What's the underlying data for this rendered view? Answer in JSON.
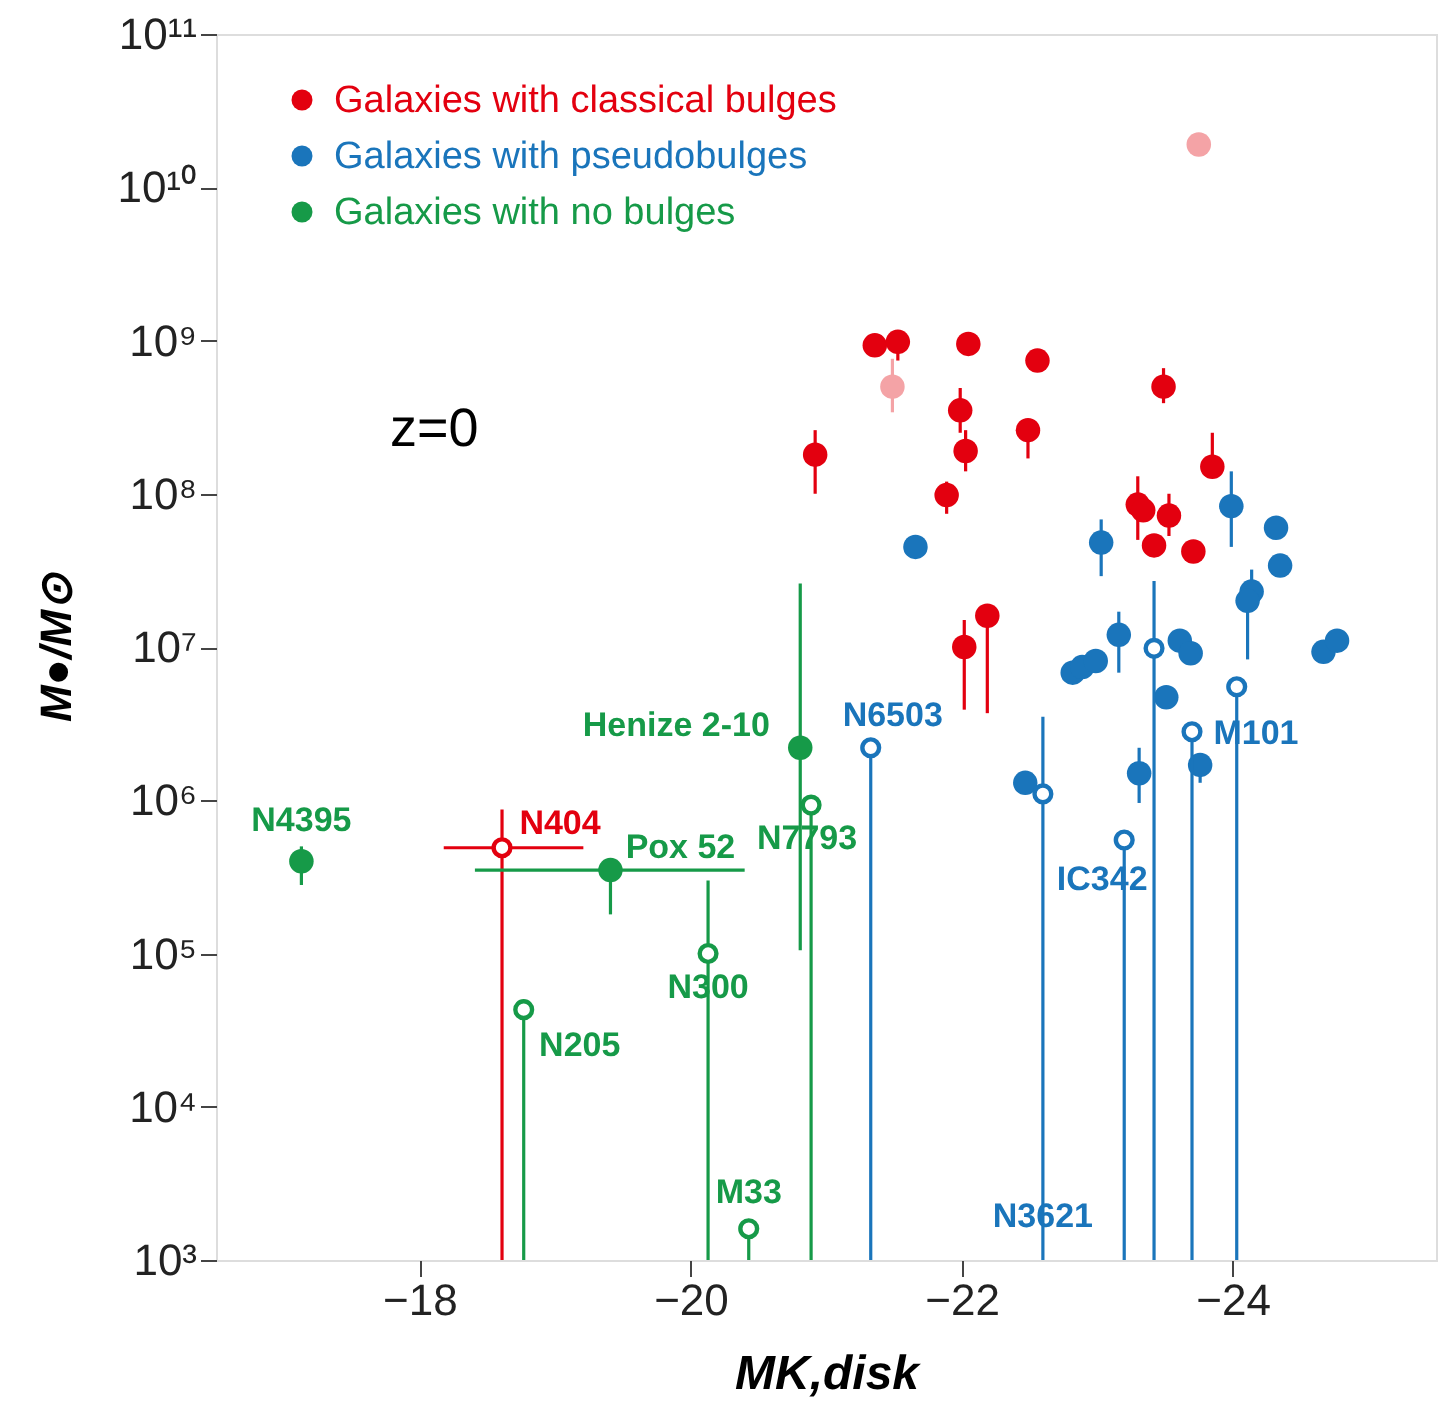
{
  "chart_data": {
    "type": "scatter",
    "xlabel": "MK,disk",
    "ylabel": "M●/M⊙",
    "log": "y",
    "grid": false,
    "legend": "top left",
    "marker": "circle",
    "xlim": [
      -16.5,
      -25.5
    ],
    "xticks": [
      {
        "value": -18,
        "label": "−18"
      },
      {
        "value": -20,
        "label": "−20"
      },
      {
        "value": -22,
        "label": "−22"
      },
      {
        "value": -24,
        "label": "−24"
      }
    ],
    "ylim": [
      1000,
      100000000000
    ],
    "yticks": [
      {
        "value": 1000,
        "label": "10³"
      },
      {
        "value": 10000,
        "label": "10⁴"
      },
      {
        "value": 100000,
        "label": "10⁵"
      },
      {
        "value": 1000000,
        "label": "10⁶"
      },
      {
        "value": 10000000,
        "label": "10⁷"
      },
      {
        "value": 100000000,
        "label": "10⁸"
      },
      {
        "value": 1000000000,
        "label": "10⁹"
      },
      {
        "value": 10000000000,
        "label": "10¹⁰"
      },
      {
        "value": 100000000000,
        "label": "10¹¹"
      }
    ],
    "series": [
      {
        "name": "Galaxies with classical bulges",
        "color": "#e3000f",
        "x": [
          -21.36,
          -21.53,
          -22.05,
          -22.56,
          -23.49,
          -21.99,
          -22.49,
          -22.03,
          -20.92,
          -23.85,
          -21.89,
          -23.3,
          -23.34,
          -23.53,
          -23.42,
          -23.71,
          -22.02,
          -22.19
        ],
        "values": [
          930000000.0,
          980000000.0,
          950000000.0,
          740000000.0,
          500000000.0,
          350000000.0,
          260000000.0,
          190000000.0,
          180000000.0,
          150000000.0,
          98000000.0,
          85000000.0,
          78000000.0,
          72000000.0,
          46000000.0,
          42000000.0,
          10000000.0,
          16000000.0
        ],
        "errors": [
          null,
          [
            740000000.0,
            980000000.0
          ],
          null,
          null,
          [
            390000000.0,
            660000000.0
          ],
          [
            250000000.0,
            490000000.0
          ],
          [
            170000000.0,
            260000000.0
          ],
          [
            140000000.0,
            260000000.0
          ],
          [
            100000000.0,
            260000000.0
          ],
          [
            130000000.0,
            250000000.0
          ],
          [
            74000000.0,
            120000000.0
          ],
          [
            50000000.0,
            130000000.0
          ],
          null,
          [
            53000000.0,
            100000000.0
          ],
          null,
          null,
          [
            3900000.0,
            15000000.0
          ],
          [
            3700000.0,
            16000000.0
          ]
        ]
      },
      {
        "color": "#f4a3a6",
        "x": [
          -23.75,
          -21.49
        ],
        "values": [
          19000000000.0,
          500000000.0
        ],
        "errors": [
          null,
          [
            340000000.0,
            760000000.0
          ]
        ]
      },
      {
        "color": "#e3000f",
        "x": [
          -18.61
        ],
        "values": [
          490000.0
        ],
        "errors": [
          [
            1000,
            870000.0
          ]
        ],
        "xerrors": [
          [
            -18.18,
            -19.21
          ]
        ]
      },
      {
        "name": "Galaxies with pseudobulges",
        "color": "#1a75bb",
        "x": [
          -21.66,
          -23.03,
          -23.99,
          -24.32,
          -24.35,
          -24.14,
          -24.11,
          -23.16,
          -22.82,
          -22.89,
          -22.99,
          -23.61,
          -23.69,
          -24.67,
          -24.77,
          -23.51,
          -23.31,
          -23.76,
          -22.47
        ],
        "values": [
          45000000.0,
          48000000.0,
          83000000.0,
          60000000.0,
          34000000.0,
          23000000.0,
          20000000.0,
          12000000.0,
          6800000.0,
          7400000.0,
          8100000.0,
          11000000.0,
          9100000.0,
          9300000.0,
          11000000.0,
          4700000.0,
          1500000.0,
          1700000.0,
          1300000.0
        ],
        "errors": [
          null,
          [
            29000000.0,
            68000000.0
          ],
          [
            45000000.0,
            140000000.0
          ],
          null,
          null,
          [
            23000000.0,
            32000000.0
          ],
          [
            8300000.0,
            20000000.0
          ],
          [
            6800000.0,
            17000000.0
          ],
          null,
          null,
          null,
          null,
          null,
          null,
          null,
          null,
          [
            960000.0,
            2200000.0
          ],
          [
            1300000.0,
            1700000.0
          ],
          null
        ]
      },
      {
        "color": "#1a75bb",
        "x": [
          -21.33,
          -22.6,
          -23.2,
          -23.42,
          -23.7,
          -24.03
        ],
        "values": [
          2200000.0,
          1100000.0,
          550000.0,
          9800000.0,
          2800000.0,
          5500000.0
        ],
        "errors": [
          [
            1000,
            2200000.0
          ],
          [
            1000,
            3500000.0
          ],
          [
            1000,
            550000.0
          ],
          [
            1000,
            27000000.0
          ],
          [
            1000,
            2800000.0
          ],
          [
            1000,
            5500000.0
          ]
        ]
      },
      {
        "name": "Galaxies with no bulges",
        "color": "#169a48",
        "x": [
          -17.13,
          -19.41,
          -20.81
        ],
        "values": [
          400000.0,
          350000.0,
          2200000.0
        ],
        "errors": [
          [
            280000.0,
            500000.0
          ],
          [
            180000.0,
            410000.0
          ],
          [
            105000.0,
            26000000.0
          ]
        ],
        "xerrors": [
          null,
          [
            -18.41,
            -20.4
          ],
          null
        ]
      },
      {
        "color": "#169a48",
        "x": [
          -20.89,
          -20.13,
          -18.77,
          -20.43
        ],
        "values": [
          930000.0,
          100000.0,
          43000.0,
          1600.0
        ],
        "errors": [
          [
            1000,
            930000.0
          ],
          [
            1000,
            300000.0
          ],
          [
            1000,
            43000.0
          ],
          [
            1000,
            1600.0
          ]
        ]
      }
    ],
    "annotations": [
      "z=0",
      {
        "text": "N4395",
        "x": -17.13,
        "y": 400000.0
      },
      {
        "text": "N404",
        "x": -18.61,
        "y": 490000.0
      },
      {
        "text": "Pox 52",
        "x": -19.41,
        "y": 350000.0
      },
      {
        "text": "Henize 2-10",
        "x": -20.81,
        "y": 2200000.0
      },
      {
        "text": "N7793",
        "x": -20.89,
        "y": 930000.0
      },
      {
        "text": "N300",
        "x": -20.13,
        "y": 100000.0
      },
      {
        "text": "N205",
        "x": -18.77,
        "y": 43000.0
      },
      {
        "text": "M33",
        "x": -20.43,
        "y": 1600.0
      },
      {
        "text": "N6503",
        "x": -21.33,
        "y": 2200000.0
      },
      {
        "text": "IC342",
        "x": -23.2,
        "y": 550000.0
      },
      {
        "text": "M101",
        "x": -23.7,
        "y": 2800000.0
      },
      {
        "text": "N3621",
        "x": -22.6,
        "y": 1900.0
      }
    ]
  }
}
